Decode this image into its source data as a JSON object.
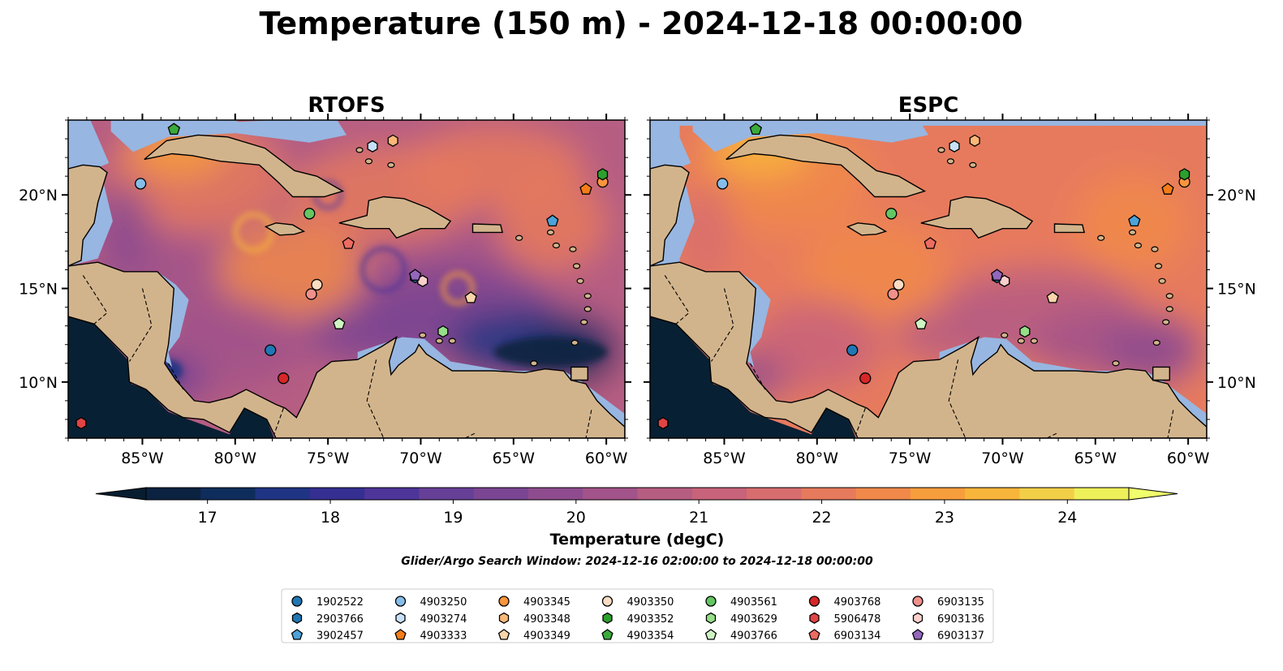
{
  "figure": {
    "title": "Temperature (150 m) - 2024-12-18 00:00:00",
    "search_window": "Glider/Argo Search Window: 2024-12-16 02:00:00 to 2024-12-18 00:00:00"
  },
  "chart_data": [
    {
      "type": "heatmap",
      "title": "RTOFS",
      "variable": "Temperature (degC)",
      "depth_m": 150,
      "lon_ticks": [
        "85°W",
        "80°W",
        "75°W",
        "70°W",
        "65°W",
        "60°W"
      ],
      "lon_tick_values": [
        -85,
        -80,
        -75,
        -70,
        -65,
        -60
      ],
      "lat_ticks": [
        "20°N",
        "15°N",
        "10°N"
      ],
      "lat_tick_values": [
        20,
        15,
        10
      ],
      "xlim": [
        -89,
        -59
      ],
      "ylim": [
        7,
        24
      ],
      "lat_labels_side": "left"
    },
    {
      "type": "heatmap",
      "title": "ESPC",
      "variable": "Temperature (degC)",
      "depth_m": 150,
      "lon_ticks": [
        "85°W",
        "80°W",
        "75°W",
        "70°W",
        "65°W",
        "60°W"
      ],
      "lon_tick_values": [
        -85,
        -80,
        -75,
        -70,
        -65,
        -60
      ],
      "lat_ticks": [
        "20°N",
        "15°N",
        "10°N"
      ],
      "lat_tick_values": [
        20,
        15,
        10
      ],
      "xlim": [
        -89,
        -59
      ],
      "ylim": [
        7,
        24
      ],
      "lat_labels_side": "right"
    }
  ],
  "colorbar": {
    "label": "Temperature (degC)",
    "min": 16.5,
    "max": 24.5,
    "step": 0.5,
    "extend": "both",
    "ticks": [
      17,
      18,
      19,
      20,
      21,
      22,
      23,
      24
    ],
    "tick_labels": [
      "17",
      "18",
      "19",
      "20",
      "21",
      "22",
      "23",
      "24"
    ],
    "colors": [
      "#0b2240",
      "#0f2d5c",
      "#1f3583",
      "#352f92",
      "#4d3599",
      "#663f97",
      "#7a4592",
      "#8e4c8e",
      "#a25389",
      "#b65d82",
      "#c7637a",
      "#d76d6f",
      "#e67a5d",
      "#f0894a",
      "#f79e3c",
      "#f8b53b",
      "#f3cf48",
      "#eef05a"
    ],
    "under_color": "#081d30",
    "over_color": "#f0fd6c"
  },
  "map_colors": {
    "land": "#d2b48c",
    "ocean_nodata": "#97b6e1",
    "deep_nodata": "#082033",
    "coast": "#000000"
  },
  "floats": [
    {
      "id": "1902522",
      "marker": "circle",
      "color": "#1f77b4",
      "lon": -78.1,
      "lat": 11.7
    },
    {
      "id": "2903766",
      "marker": "hexagon",
      "color": "#1f77b4",
      "lon": -70.3,
      "lat": 15.6
    },
    {
      "id": "3902457",
      "marker": "pentagon",
      "color": "#4ba3d9",
      "lon": -62.9,
      "lat": 18.6
    },
    {
      "id": "4903250",
      "marker": "circle",
      "color": "#86bde8",
      "lon": -85.1,
      "lat": 20.6
    },
    {
      "id": "4903274",
      "marker": "hexagon",
      "color": "#c8e1f7",
      "lon": -72.6,
      "lat": 22.6
    },
    {
      "id": "4903333",
      "marker": "pentagon",
      "color": "#f57d17",
      "lon": -61.1,
      "lat": 20.3
    },
    {
      "id": "4903345",
      "marker": "circle",
      "color": "#f8953d",
      "lon": -60.2,
      "lat": 20.7
    },
    {
      "id": "4903348",
      "marker": "hexagon",
      "color": "#fbb877",
      "lon": -71.5,
      "lat": 22.9
    },
    {
      "id": "4903349",
      "marker": "pentagon",
      "color": "#fbd5aa",
      "lon": -67.3,
      "lat": 14.5
    },
    {
      "id": "4903350",
      "marker": "circle",
      "color": "#fadcc4",
      "lon": -75.6,
      "lat": 15.2
    },
    {
      "id": "4903352",
      "marker": "hexagon",
      "color": "#2ca02c",
      "lon": -60.2,
      "lat": 21.1
    },
    {
      "id": "4903354",
      "marker": "pentagon",
      "color": "#3aab3a",
      "lon": -83.3,
      "lat": 23.5
    },
    {
      "id": "4903561",
      "marker": "circle",
      "color": "#63c663",
      "lon": -76.0,
      "lat": 19.0
    },
    {
      "id": "4903629",
      "marker": "hexagon",
      "color": "#96de88",
      "lon": -68.8,
      "lat": 12.7
    },
    {
      "id": "4903766",
      "marker": "pentagon",
      "color": "#cff4c3",
      "lon": -74.4,
      "lat": 13.1
    },
    {
      "id": "4903768",
      "marker": "circle",
      "color": "#d62728",
      "lon": -77.4,
      "lat": 10.2
    },
    {
      "id": "5906478",
      "marker": "hexagon",
      "color": "#e04444",
      "lon": -88.3,
      "lat": 7.8
    },
    {
      "id": "6903134",
      "marker": "pentagon",
      "color": "#ec6b62",
      "lon": -73.9,
      "lat": 17.4
    },
    {
      "id": "6903135",
      "marker": "circle",
      "color": "#f0908b",
      "lon": -75.9,
      "lat": 14.7
    },
    {
      "id": "6903136",
      "marker": "hexagon",
      "color": "#fbcfcc",
      "lon": -69.9,
      "lat": 15.4
    },
    {
      "id": "6903137",
      "marker": "pentagon",
      "color": "#9467bd",
      "lon": -70.3,
      "lat": 15.7
    }
  ],
  "legend_items": [
    {
      "label": "1902522",
      "marker": "circle",
      "color": "#1f77b4"
    },
    {
      "label": "2903766",
      "marker": "hexagon",
      "color": "#1f77b4"
    },
    {
      "label": "3902457",
      "marker": "pentagon",
      "color": "#4ba3d9"
    },
    {
      "label": "4903250",
      "marker": "circle",
      "color": "#86bde8"
    },
    {
      "label": "4903274",
      "marker": "hexagon",
      "color": "#c8e1f7"
    },
    {
      "label": "4903333",
      "marker": "pentagon",
      "color": "#f57d17"
    },
    {
      "label": "4903345",
      "marker": "circle",
      "color": "#f8953d"
    },
    {
      "label": "4903348",
      "marker": "hexagon",
      "color": "#fbb877"
    },
    {
      "label": "4903349",
      "marker": "pentagon",
      "color": "#fbd5aa"
    },
    {
      "label": "4903350",
      "marker": "circle",
      "color": "#fadcc4"
    },
    {
      "label": "4903352",
      "marker": "hexagon",
      "color": "#2ca02c"
    },
    {
      "label": "4903354",
      "marker": "pentagon",
      "color": "#3aab3a"
    },
    {
      "label": "4903561",
      "marker": "circle",
      "color": "#63c663"
    },
    {
      "label": "4903629",
      "marker": "hexagon",
      "color": "#96de88"
    },
    {
      "label": "4903766",
      "marker": "pentagon",
      "color": "#cff4c3"
    },
    {
      "label": "4903768",
      "marker": "circle",
      "color": "#d62728"
    },
    {
      "label": "5906478",
      "marker": "hexagon",
      "color": "#e04444"
    },
    {
      "label": "6903134",
      "marker": "pentagon",
      "color": "#ec6b62"
    },
    {
      "label": "6903135",
      "marker": "circle",
      "color": "#f0908b"
    },
    {
      "label": "6903136",
      "marker": "hexagon",
      "color": "#fbcfcc"
    },
    {
      "label": "6903137",
      "marker": "pentagon",
      "color": "#9467bd"
    }
  ]
}
